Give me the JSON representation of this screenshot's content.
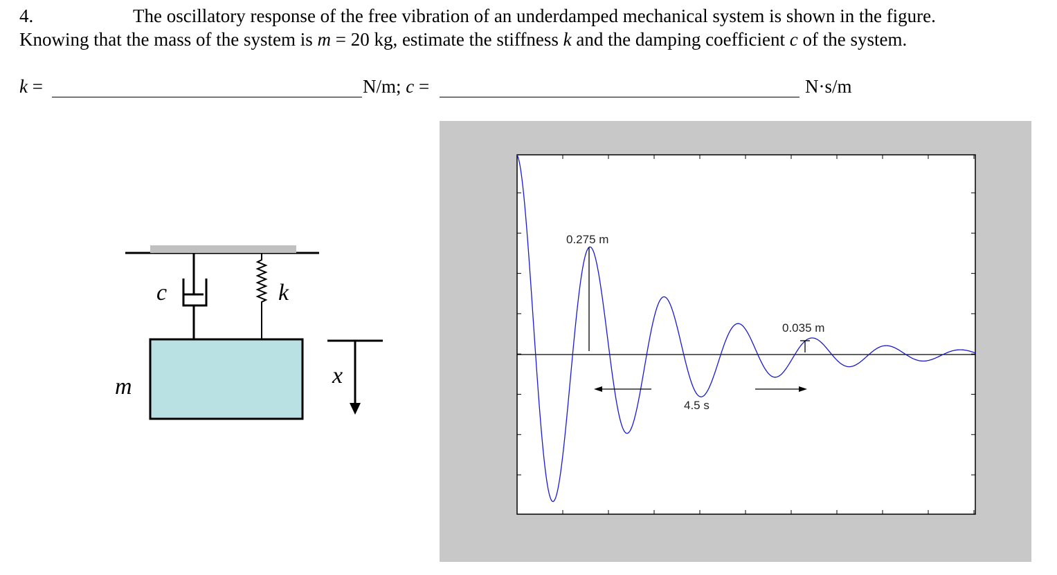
{
  "problem": {
    "number": "4.",
    "line1": "The oscillatory response of the free vibration of an underdamped mechanical system is shown in the figure.",
    "line2": [
      "Knowing that the mass of the system is ",
      "m",
      " = 20 kg, estimate the stiffness ",
      "k",
      " and the damping coefficient ",
      "c",
      " of the system."
    ],
    "answer": {
      "k_label": "k",
      "eq1": " =",
      "unit1": "N/m; ",
      "c_label": "c",
      "eq2": " =",
      "unit2": "N·s/m"
    }
  },
  "diagram": {
    "damper_label": "c",
    "spring_label": "k",
    "mass_label": "m",
    "displacement_label": "x"
  },
  "figure": {
    "peak_label": "0.275 m",
    "late_peak_label": "0.035 m",
    "period_label": "4.5 s"
  }
}
